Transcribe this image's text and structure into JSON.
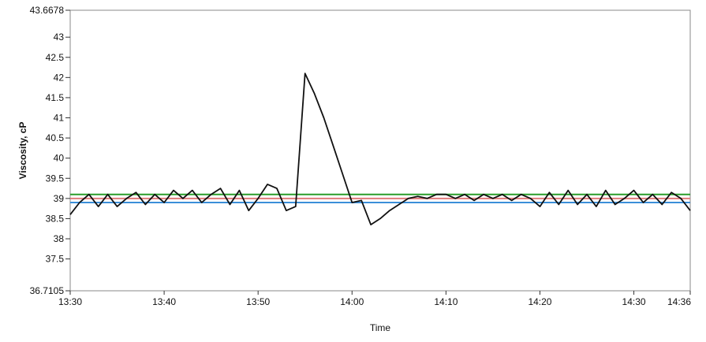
{
  "chart_data": {
    "type": "line",
    "title": "",
    "xlabel": "Time",
    "ylabel": "Viscosity, cP",
    "xlim": [
      "13:30",
      "14:36"
    ],
    "ylim": [
      36.7105,
      43.6678
    ],
    "x_ticks": [
      "13:30",
      "13:40",
      "13:50",
      "14:00",
      "14:10",
      "14:20",
      "14:30",
      "14:36"
    ],
    "y_ticks": [
      "43.6678",
      "43",
      "42.5",
      "42",
      "41.5",
      "41",
      "40.5",
      "40",
      "39.5",
      "39",
      "38.5",
      "38",
      "37.5",
      "36.7105"
    ],
    "y_tick_values": [
      43.6678,
      43,
      42.5,
      42,
      41.5,
      41,
      40.5,
      40,
      39.5,
      39,
      38.5,
      38,
      37.5,
      36.7105
    ],
    "grid": false,
    "legend": "none",
    "reference_lines": [
      {
        "y": 39.1,
        "color": "#2a9d2a"
      },
      {
        "y": 39.0,
        "color": "#e07b7b"
      },
      {
        "y": 38.9,
        "color": "#3b8fd9"
      }
    ],
    "series": [
      {
        "color": "#111111",
        "x": [
          "13:30",
          "13:31",
          "13:32",
          "13:33",
          "13:34",
          "13:35",
          "13:36",
          "13:37",
          "13:38",
          "13:39",
          "13:40",
          "13:41",
          "13:42",
          "13:43",
          "13:44",
          "13:45",
          "13:46",
          "13:47",
          "13:48",
          "13:49",
          "13:50",
          "13:51",
          "13:52",
          "13:53",
          "13:54",
          "13:55",
          "13:56",
          "13:57",
          "13:58",
          "13:59",
          "14:00",
          "14:01",
          "14:02",
          "14:03",
          "14:04",
          "14:05",
          "14:06",
          "14:07",
          "14:08",
          "14:09",
          "14:10",
          "14:11",
          "14:12",
          "14:13",
          "14:14",
          "14:15",
          "14:16",
          "14:17",
          "14:18",
          "14:19",
          "14:20",
          "14:21",
          "14:22",
          "14:23",
          "14:24",
          "14:25",
          "14:26",
          "14:27",
          "14:28",
          "14:29",
          "14:30",
          "14:31",
          "14:32",
          "14:33",
          "14:34",
          "14:35",
          "14:36"
        ],
        "y": [
          38.6,
          38.9,
          39.1,
          38.8,
          39.1,
          38.8,
          39.0,
          39.15,
          38.85,
          39.1,
          38.9,
          39.2,
          39.0,
          39.2,
          38.9,
          39.1,
          39.25,
          38.85,
          39.2,
          38.7,
          39.0,
          39.35,
          39.25,
          38.7,
          38.8,
          42.1,
          41.6,
          41.0,
          40.3,
          39.6,
          38.9,
          38.95,
          38.35,
          38.5,
          38.7,
          38.85,
          39.0,
          39.05,
          39.0,
          39.1,
          39.1,
          39.0,
          39.1,
          38.95,
          39.1,
          39.0,
          39.1,
          38.95,
          39.1,
          39.0,
          38.8,
          39.15,
          38.85,
          39.2,
          38.85,
          39.1,
          38.8,
          39.2,
          38.85,
          39.0,
          39.2,
          38.9,
          39.1,
          38.85,
          39.15,
          39.0,
          38.7
        ]
      }
    ]
  }
}
